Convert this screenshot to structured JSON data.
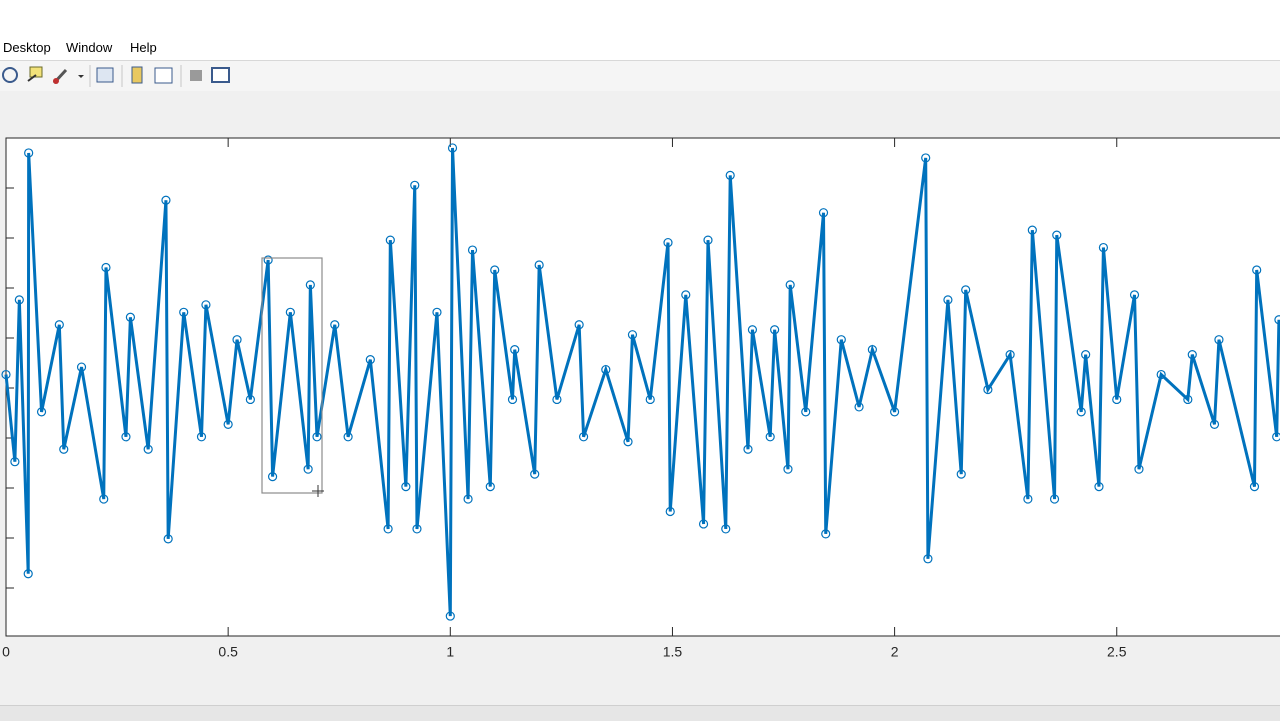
{
  "menu": [
    "Desktop",
    "Window",
    "Help"
  ],
  "chart_data": {
    "type": "scatter",
    "x": [
      0.0,
      0.02,
      0.03,
      0.05,
      0.051,
      0.08,
      0.12,
      0.13,
      0.17,
      0.22,
      0.225,
      0.27,
      0.28,
      0.32,
      0.36,
      0.365,
      0.4,
      0.44,
      0.45,
      0.5,
      0.52,
      0.55,
      0.59,
      0.6,
      0.64,
      0.68,
      0.685,
      0.7,
      0.74,
      0.77,
      0.82,
      0.86,
      0.865,
      0.9,
      0.92,
      0.925,
      0.97,
      1.0,
      1.005,
      1.04,
      1.05,
      1.09,
      1.1,
      1.14,
      1.145,
      1.19,
      1.2,
      1.24,
      1.29,
      1.3,
      1.35,
      1.4,
      1.41,
      1.45,
      1.49,
      1.495,
      1.53,
      1.57,
      1.58,
      1.62,
      1.63,
      1.67,
      1.68,
      1.72,
      1.73,
      1.76,
      1.765,
      1.8,
      1.84,
      1.845,
      1.88,
      1.92,
      1.95,
      2.0,
      2.07,
      2.075,
      2.12,
      2.15,
      2.16,
      2.21,
      2.26,
      2.3,
      2.31,
      2.36,
      2.365,
      2.42,
      2.43,
      2.46,
      2.47,
      2.5,
      2.54,
      2.55,
      2.6,
      2.66,
      2.67,
      2.72,
      2.73,
      2.81,
      2.815,
      2.86,
      2.865
    ],
    "series": [
      {
        "color": "#0072bd",
        "values": [
          0.05,
          -0.3,
          0.35,
          -0.75,
          0.94,
          -0.1,
          0.25,
          -0.25,
          0.08,
          -0.45,
          0.48,
          -0.2,
          0.28,
          -0.25,
          0.75,
          -0.61,
          0.3,
          -0.2,
          0.33,
          -0.15,
          0.19,
          -0.05,
          0.51,
          -0.36,
          0.3,
          -0.33,
          0.41,
          -0.2,
          0.25,
          -0.2,
          0.11,
          -0.57,
          0.59,
          -0.4,
          0.81,
          -0.57,
          0.3,
          -0.92,
          0.96,
          -0.45,
          0.55,
          -0.4,
          0.47,
          -0.05,
          0.15,
          -0.35,
          0.49,
          -0.05,
          0.25,
          -0.2,
          0.07,
          -0.22,
          0.21,
          -0.05,
          0.58,
          -0.5,
          0.37,
          -0.55,
          0.59,
          -0.57,
          0.85,
          -0.25,
          0.23,
          -0.2,
          0.23,
          -0.33,
          0.41,
          -0.1,
          0.7,
          -0.59,
          0.19,
          -0.08,
          0.15,
          -0.1,
          0.92,
          -0.69,
          0.35,
          -0.35,
          0.39,
          -0.01,
          0.13,
          -0.45,
          0.63,
          -0.45,
          0.61,
          -0.1,
          0.13,
          -0.4,
          0.56,
          -0.05,
          0.37,
          -0.33,
          0.05,
          -0.05,
          0.13,
          -0.15,
          0.19,
          -0.4,
          0.47,
          -0.2,
          0.27
        ]
      }
    ],
    "xlim": [
      0,
      3
    ],
    "ylim": [
      -1,
      1
    ],
    "xticks": [
      0,
      0.5,
      1,
      1.5,
      2,
      2.5
    ]
  }
}
